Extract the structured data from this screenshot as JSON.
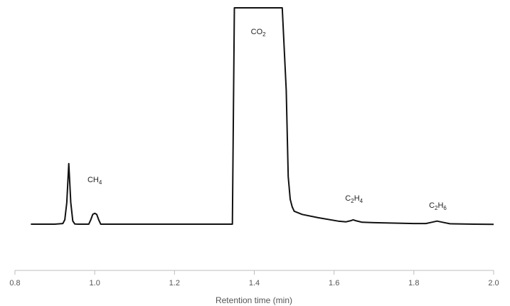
{
  "chart_data": {
    "type": "line",
    "title": "",
    "xlabel": "Retention time (min)",
    "ylabel": "",
    "xlim": [
      0.8,
      2.0
    ],
    "xticks": [
      "0.8",
      "1.0",
      "1.2",
      "1.4",
      "1.6",
      "1.8",
      "2.0"
    ],
    "grid": false,
    "series": [
      {
        "name": "",
        "x": [
          0.84,
          0.9,
          0.92,
          0.925,
          0.93,
          0.935,
          0.94,
          0.945,
          0.95,
          0.955,
          0.96,
          0.985,
          0.99,
          0.995,
          1.0,
          1.005,
          1.01,
          1.015,
          1.2,
          1.345,
          1.35,
          1.47,
          1.48,
          1.485,
          1.49,
          1.495,
          1.5,
          1.52,
          1.56,
          1.61,
          1.63,
          1.64,
          1.648,
          1.656,
          1.67,
          1.7,
          1.8,
          1.83,
          1.845,
          1.858,
          1.872,
          1.89,
          1.95,
          2.0
        ],
        "y": [
          0,
          0.1,
          3,
          20,
          100,
          280,
          100,
          15,
          1,
          0.2,
          0,
          0,
          20,
          45,
          50,
          45,
          20,
          0,
          0,
          0,
          1000,
          1000,
          620,
          220,
          115,
          80,
          60,
          45,
          30,
          14,
          11,
          15,
          20,
          15,
          9,
          7,
          3,
          3,
          9,
          14,
          9,
          2,
          0,
          -1
        ]
      }
    ],
    "annotations": [
      {
        "base": "CH",
        "sub": "4",
        "x": 1.0
      },
      {
        "base": "CO",
        "sub": "2",
        "x": 1.41
      },
      {
        "base": "C",
        "sub": "2",
        "mid": "H",
        "sub2": "4",
        "x": 1.65
      },
      {
        "base": "C",
        "sub": "2",
        "mid": "H",
        "sub2": "6",
        "x": 1.86
      }
    ]
  }
}
